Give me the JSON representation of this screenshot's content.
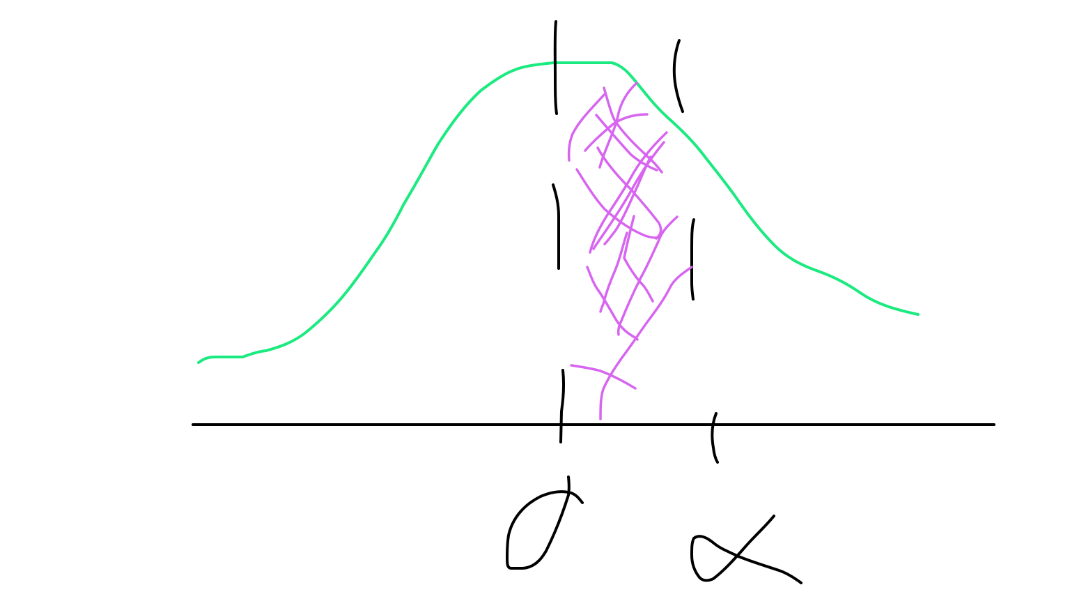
{
  "colors": {
    "background": "#ffffff",
    "ink": "#000000",
    "curve": "#1aea7f",
    "shading": "#d765f0"
  },
  "marks": {
    "curve": "bell-shaped-distribution-curve",
    "axis": "horizontal-axis",
    "shaded_region": "hatched-area-between-dashed-lines",
    "label_left": "handwritten-greek-symbol",
    "label_right": "handwritten-alpha-symbol"
  }
}
